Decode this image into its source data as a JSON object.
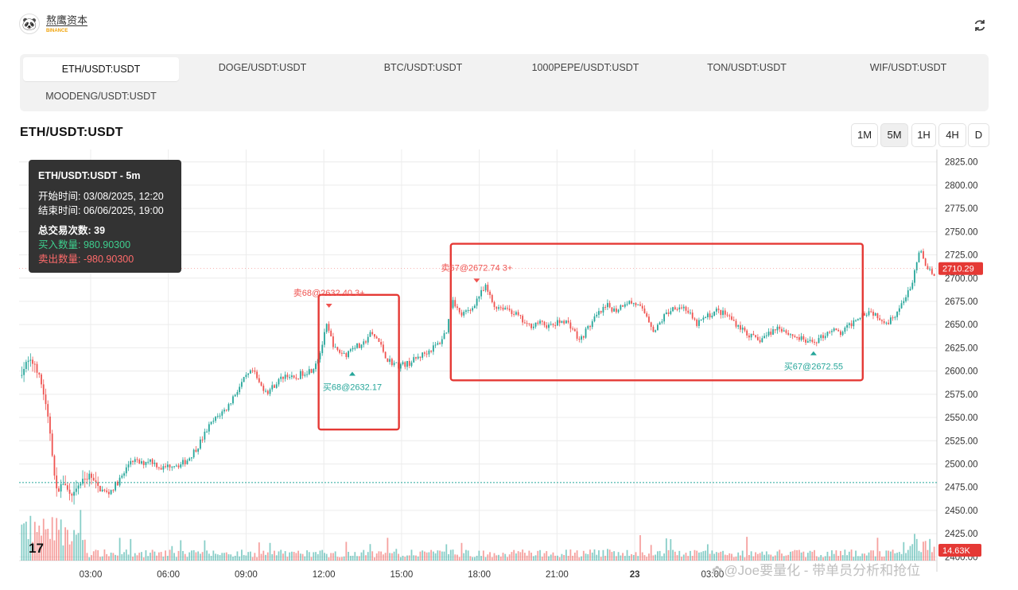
{
  "header": {
    "brand_name": "熬鹰资本",
    "brand_sub": "BINANCE",
    "avatar_glyph": "🐼"
  },
  "tabs": [
    {
      "label": "ETH/USDT:USDT",
      "active": true
    },
    {
      "label": "DOGE/USDT:USDT",
      "active": false
    },
    {
      "label": "BTC/USDT:USDT",
      "active": false
    },
    {
      "label": "1000PEPE/USDT:USDT",
      "active": false
    },
    {
      "label": "TON/USDT:USDT",
      "active": false
    },
    {
      "label": "WIF/USDT:USDT",
      "active": false
    },
    {
      "label": "MOODENG/USDT:USDT",
      "active": false
    }
  ],
  "chart_title": "ETH/USDT:USDT",
  "timeframes": [
    {
      "label": "1M",
      "active": false
    },
    {
      "label": "5M",
      "active": true
    },
    {
      "label": "1H",
      "active": false
    },
    {
      "label": "4H",
      "active": false
    },
    {
      "label": "D",
      "active": false
    }
  ],
  "tooltip": {
    "title": "ETH/USDT:USDT - 5m",
    "start_time": "开始时间: 03/08/2025, 12:20",
    "end_time": "结束时间: 06/06/2025, 19:00",
    "total_trades": "总交易次数: 39",
    "buy_qty": "买入数量: 980.90300",
    "sell_qty": "卖出数量: -980.90300"
  },
  "watermark": "@Joe要量化 - 带单员分析和抢位",
  "colors": {
    "up": "#26a69a",
    "down": "#ef5350",
    "highlight": "#e53935",
    "dotted": "#26a69a"
  },
  "chart_data": {
    "type": "candlestick",
    "y_ticks": [
      "2825.00",
      "2800.00",
      "2775.00",
      "2750.00",
      "2725.00",
      "2700.00",
      "2675.00",
      "2650.00",
      "2625.00",
      "2600.00",
      "2575.00",
      "2550.00",
      "2525.00",
      "2500.00",
      "2475.00",
      "2450.00",
      "2425.00",
      "2400.00"
    ],
    "ylim": [
      2396,
      2835
    ],
    "x_ticks": [
      {
        "label": "03:00",
        "bold": false
      },
      {
        "label": "06:00",
        "bold": false
      },
      {
        "label": "09:00",
        "bold": false
      },
      {
        "label": "12:00",
        "bold": false
      },
      {
        "label": "15:00",
        "bold": false
      },
      {
        "label": "18:00",
        "bold": false
      },
      {
        "label": "21:00",
        "bold": false
      },
      {
        "label": "23",
        "bold": true
      },
      {
        "label": "03:00",
        "bold": false
      }
    ],
    "x_range_hours": [
      0,
      35.3
    ],
    "last_price": "2710.29",
    "last_price_value": 2710.29,
    "volume_label": "14.63K",
    "dotted_level": 2480,
    "logo": "17",
    "price_path": [
      [
        0.0,
        2595
      ],
      [
        0.3,
        2610
      ],
      [
        0.6,
        2608
      ],
      [
        0.9,
        2580
      ],
      [
        1.2,
        2530
      ],
      [
        1.4,
        2470
      ],
      [
        1.7,
        2480
      ],
      [
        2.0,
        2462
      ],
      [
        2.3,
        2478
      ],
      [
        2.7,
        2488
      ],
      [
        3.0,
        2475
      ],
      [
        3.4,
        2468
      ],
      [
        3.6,
        2474
      ],
      [
        4.0,
        2488
      ],
      [
        4.3,
        2505
      ],
      [
        4.7,
        2500
      ],
      [
        5.0,
        2505
      ],
      [
        5.5,
        2495
      ],
      [
        5.9,
        2500
      ],
      [
        6.2,
        2499
      ],
      [
        6.5,
        2505
      ],
      [
        6.9,
        2520
      ],
      [
        7.3,
        2540
      ],
      [
        7.7,
        2553
      ],
      [
        8.0,
        2560
      ],
      [
        8.3,
        2575
      ],
      [
        8.7,
        2592
      ],
      [
        9.0,
        2600
      ],
      [
        9.3,
        2584
      ],
      [
        9.6,
        2578
      ],
      [
        9.9,
        2587
      ],
      [
        10.3,
        2597
      ],
      [
        10.6,
        2590
      ],
      [
        10.9,
        2598
      ],
      [
        11.3,
        2602
      ],
      [
        11.6,
        2620
      ],
      [
        11.85,
        2648
      ],
      [
        12.2,
        2622
      ],
      [
        12.6,
        2618
      ],
      [
        12.9,
        2628
      ],
      [
        13.2,
        2625
      ],
      [
        13.5,
        2640
      ],
      [
        13.8,
        2635
      ],
      [
        14.2,
        2612
      ],
      [
        14.6,
        2606
      ],
      [
        15.0,
        2608
      ],
      [
        15.4,
        2615
      ],
      [
        15.8,
        2622
      ],
      [
        16.2,
        2630
      ],
      [
        16.5,
        2645
      ],
      [
        16.7,
        2680
      ],
      [
        17.0,
        2660
      ],
      [
        17.4,
        2665
      ],
      [
        17.7,
        2680
      ],
      [
        18.0,
        2690
      ],
      [
        18.3,
        2670
      ],
      [
        18.8,
        2668
      ],
      [
        19.2,
        2660
      ],
      [
        19.6,
        2648
      ],
      [
        20.0,
        2652
      ],
      [
        20.5,
        2648
      ],
      [
        21.0,
        2655
      ],
      [
        21.3,
        2648
      ],
      [
        21.6,
        2632
      ],
      [
        21.9,
        2645
      ],
      [
        22.3,
        2660
      ],
      [
        22.7,
        2670
      ],
      [
        23.0,
        2665
      ],
      [
        23.4,
        2675
      ],
      [
        23.8,
        2672
      ],
      [
        24.2,
        2660
      ],
      [
        24.5,
        2642
      ],
      [
        24.9,
        2660
      ],
      [
        25.3,
        2670
      ],
      [
        25.7,
        2668
      ],
      [
        26.1,
        2650
      ],
      [
        26.5,
        2658
      ],
      [
        26.9,
        2665
      ],
      [
        27.3,
        2660
      ],
      [
        27.7,
        2650
      ],
      [
        28.1,
        2640
      ],
      [
        28.5,
        2632
      ],
      [
        28.9,
        2640
      ],
      [
        29.3,
        2648
      ],
      [
        29.7,
        2640
      ],
      [
        30.1,
        2635
      ],
      [
        30.5,
        2630
      ],
      [
        30.9,
        2635
      ],
      [
        31.3,
        2645
      ],
      [
        31.7,
        2640
      ],
      [
        32.0,
        2648
      ],
      [
        32.4,
        2660
      ],
      [
        32.8,
        2665
      ],
      [
        33.1,
        2660
      ],
      [
        33.5,
        2652
      ],
      [
        33.9,
        2665
      ],
      [
        34.2,
        2678
      ],
      [
        34.5,
        2700
      ],
      [
        34.75,
        2730
      ],
      [
        35.0,
        2712
      ],
      [
        35.3,
        2705
      ]
    ],
    "trade_boxes": [
      {
        "t_from": 11.5,
        "t_to": 14.6,
        "p_from": 2537,
        "p_to": 2682
      },
      {
        "t_from": 16.6,
        "t_to": 32.5,
        "p_from": 2590,
        "p_to": 2737
      }
    ],
    "markers": [
      {
        "side": "sell",
        "text": "卖68@2632.40 3+",
        "t": 11.9,
        "p": 2675
      },
      {
        "side": "buy",
        "text": "买68@2632.17",
        "t": 12.8,
        "p": 2595
      },
      {
        "side": "sell",
        "text": "卖67@2672.74 3+",
        "t": 17.6,
        "p": 2702
      },
      {
        "side": "buy",
        "text": "买67@2672.55",
        "t": 30.6,
        "p": 2617
      }
    ]
  }
}
